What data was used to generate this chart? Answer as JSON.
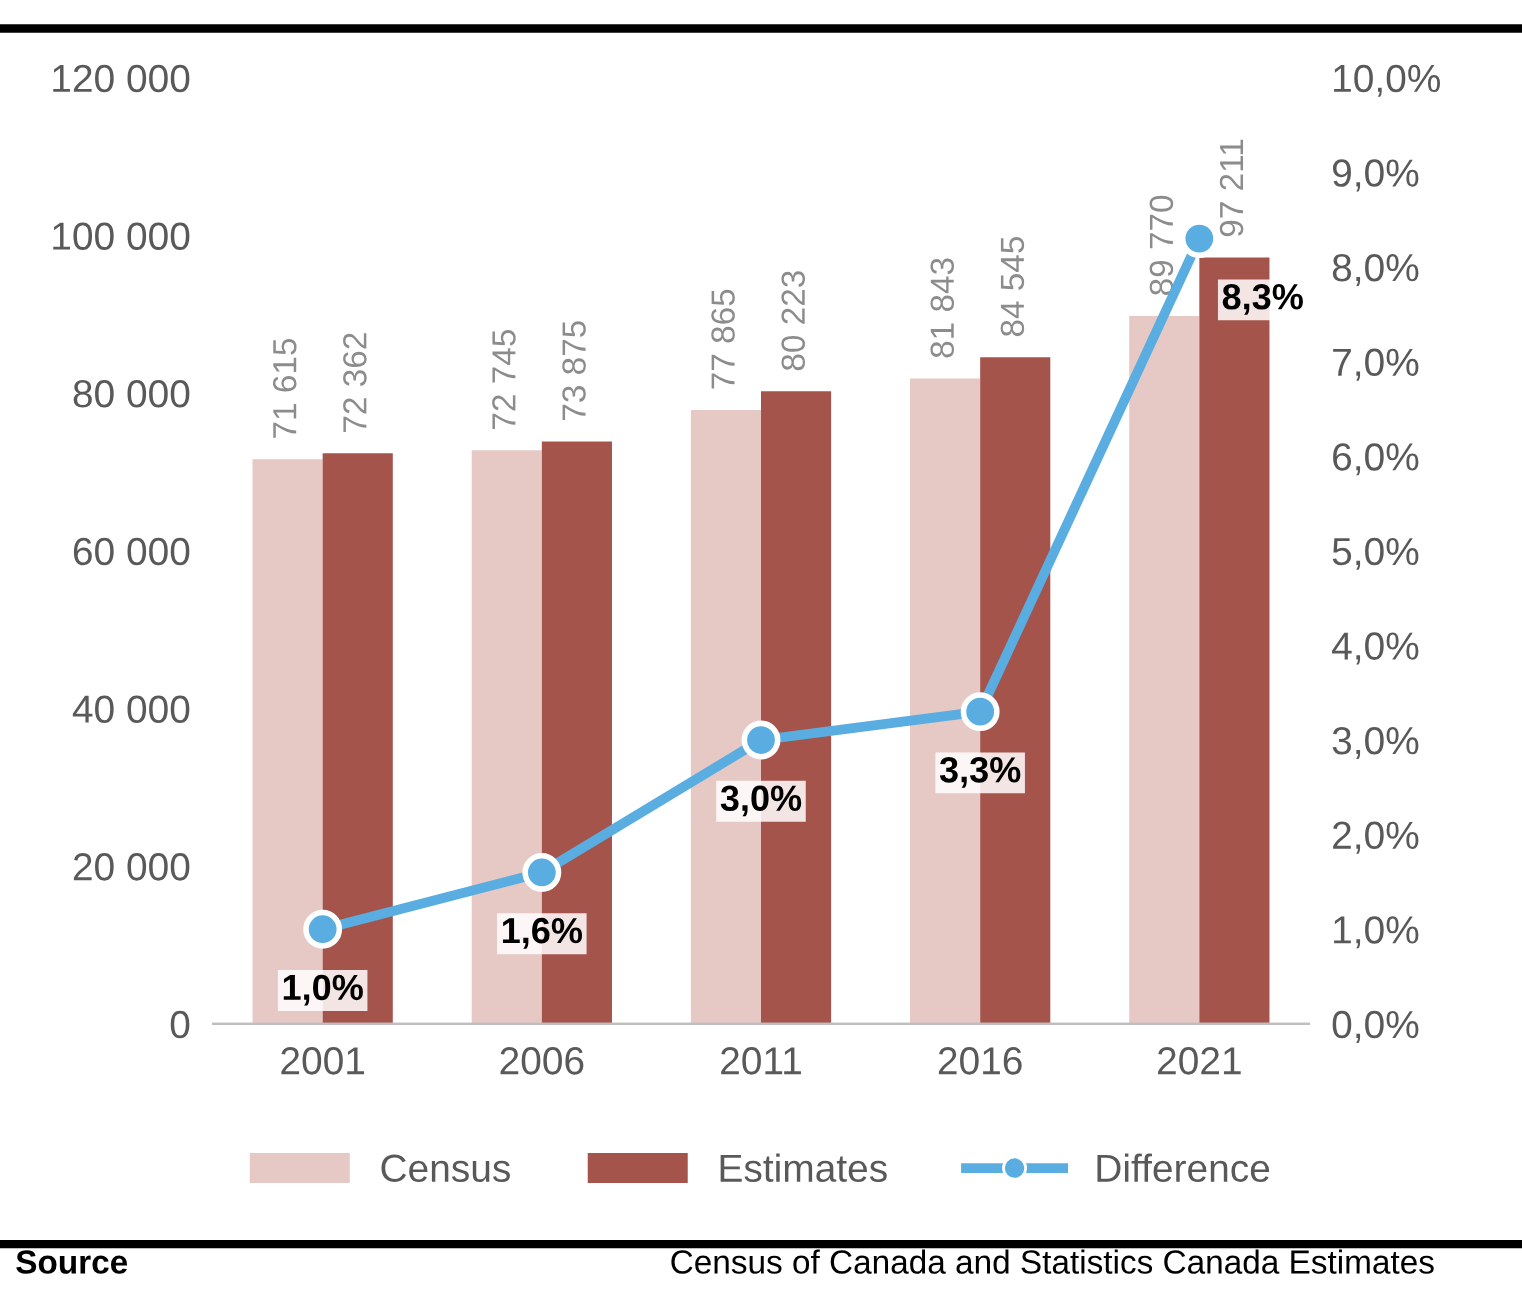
{
  "chart_data": {
    "type": "bar",
    "categories": [
      "2001",
      "2006",
      "2011",
      "2016",
      "2021"
    ],
    "series": [
      {
        "name": "Census",
        "color": "#e6c9c4",
        "values": [
          71615,
          72745,
          77865,
          81843,
          89770
        ],
        "value_labels": [
          "71 615",
          "72 745",
          "77 865",
          "81 843",
          "89 770"
        ]
      },
      {
        "name": "Estimates",
        "color": "#a5544b",
        "values": [
          72362,
          73875,
          80223,
          84545,
          97211
        ],
        "value_labels": [
          "72 362",
          "73 875",
          "80 223",
          "84 545",
          "97 211"
        ]
      },
      {
        "name": "Difference",
        "type": "line",
        "axis": "y2",
        "color": "#5aade0",
        "marker": "circle",
        "values": [
          1.0,
          1.6,
          3.0,
          3.3,
          8.3
        ],
        "value_labels": [
          "1,0%",
          "1,6%",
          "3,0%",
          "3,3%",
          "8,3%"
        ]
      }
    ],
    "ylim": [
      0,
      120000
    ],
    "yticks": [
      {
        "value": 0,
        "label": "0"
      },
      {
        "value": 20000,
        "label": "20 000"
      },
      {
        "value": 40000,
        "label": "40 000"
      },
      {
        "value": 60000,
        "label": "60 000"
      },
      {
        "value": 80000,
        "label": "80 000"
      },
      {
        "value": 100000,
        "label": "100 000"
      },
      {
        "value": 120000,
        "label": "120 000"
      }
    ],
    "y2lim": [
      0,
      10
    ],
    "y2ticks": [
      {
        "value": 0,
        "label": "0,0%"
      },
      {
        "value": 1,
        "label": "1,0%"
      },
      {
        "value": 2,
        "label": "2,0%"
      },
      {
        "value": 3,
        "label": "3,0%"
      },
      {
        "value": 4,
        "label": "4,0%"
      },
      {
        "value": 5,
        "label": "5,0%"
      },
      {
        "value": 6,
        "label": "6,0%"
      },
      {
        "value": 7,
        "label": "7,0%"
      },
      {
        "value": 8,
        "label": "8,0%"
      },
      {
        "value": 9,
        "label": "9,0%"
      },
      {
        "value": 10,
        "label": "10,0%"
      }
    ],
    "legend": "bottom",
    "annotations": [
      "Source",
      "Census of Canada and Statistics Canada Estimates"
    ]
  }
}
